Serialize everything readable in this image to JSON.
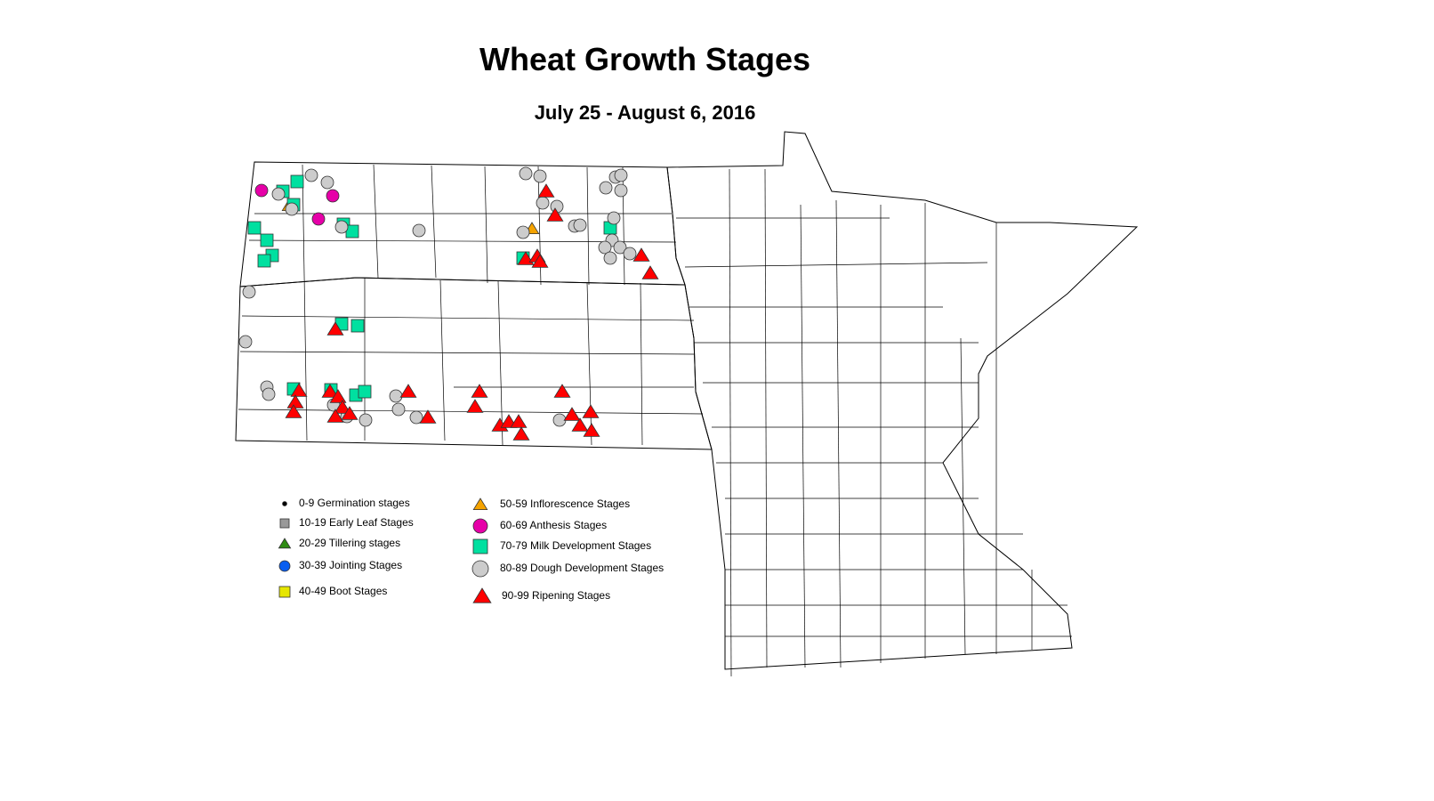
{
  "title": "Wheat Growth Stages",
  "subtitle": "July 25 - August 6, 2016",
  "legend": [
    {
      "label": "0-9 Germination stages",
      "shape": "dot",
      "color": "#000000"
    },
    {
      "label": "10-19 Early Leaf Stages",
      "shape": "square",
      "color": "#999999"
    },
    {
      "label": "20-29 Tillering stages",
      "shape": "triangle",
      "color": "#2e8b12"
    },
    {
      "label": "30-39 Jointing Stages",
      "shape": "circle",
      "color": "#0a5ef0"
    },
    {
      "label": "40-49 Boot Stages",
      "shape": "square",
      "color": "#e6e600"
    },
    {
      "label": "50-59 Inflorescence Stages",
      "shape": "triangle",
      "color": "#f5a300"
    },
    {
      "label": "60-69 Anthesis Stages",
      "shape": "circle",
      "color": "#e600a8"
    },
    {
      "label": "70-79 Milk Development Stages",
      "shape": "square",
      "color": "#00e0a0"
    },
    {
      "label": "80-89 Dough Development Stages",
      "shape": "circle",
      "color": "#cccccc"
    },
    {
      "label": "90-99 Ripening Stages",
      "shape": "triangle",
      "color": "#ff0000"
    }
  ]
}
